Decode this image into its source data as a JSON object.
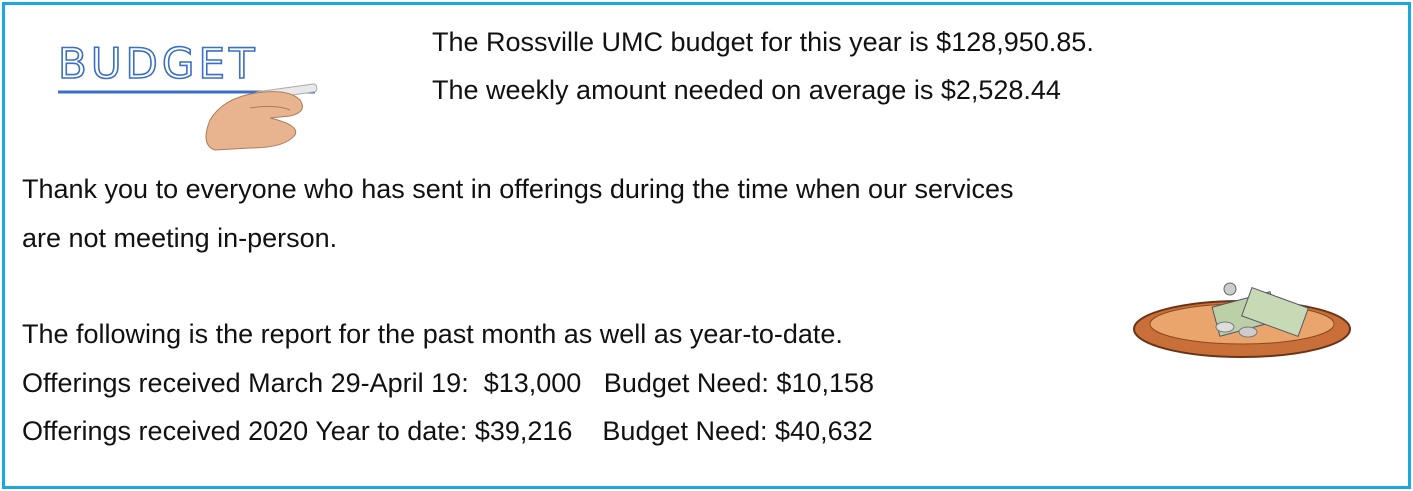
{
  "budget_image": {
    "label": "BUDGET"
  },
  "intro": {
    "lines": [
      "The Rossville UMC budget for this year is $128,950.85.",
      "The weekly amount needed on average is $2,528.44"
    ]
  },
  "thanks": {
    "lines": [
      "Thank you to everyone who has sent in offerings during the time when our services",
      "are not meeting in-person."
    ]
  },
  "report": {
    "lines": [
      "The following is the report for the past month as well as year-to-date.",
      "Offerings received March 29-April 19:  $13,000   Budget Need: $10,158",
      "Offerings received 2020 Year to date: $39,216    Budget Need: $40,632"
    ]
  }
}
